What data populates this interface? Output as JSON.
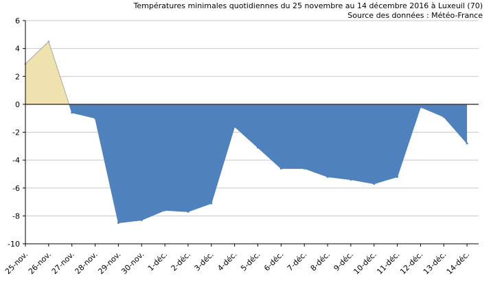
{
  "chart_data": {
    "type": "area",
    "title": "Températures minimales quotidiennes du 25 novembre au 14 décembre 2016 à Luxeuil (70)",
    "subtitle": "Source des données : Météo-France",
    "xlabel": "",
    "ylabel": "",
    "categories": [
      "25-nov.",
      "26-nov.",
      "27-nov.",
      "28-nov.",
      "29-nov.",
      "30-nov.",
      "1-déc.",
      "2-déc.",
      "3-déc.",
      "4-déc.",
      "5-déc.",
      "6-déc.",
      "7-déc.",
      "8-déc.",
      "9-déc.",
      "10-déc.",
      "11-déc.",
      "12-déc.",
      "13-déc.",
      "14-déc."
    ],
    "values": [
      2.9,
      4.5,
      -0.6,
      -1.0,
      -8.5,
      -8.3,
      -7.6,
      -7.7,
      -7.1,
      -1.6,
      -3.1,
      -4.6,
      -4.6,
      -5.2,
      -5.4,
      -5.7,
      -5.2,
      -0.2,
      -0.9,
      -2.8
    ],
    "ylim": [
      -10,
      6
    ],
    "yticks": [
      "6",
      "4",
      "2",
      "0",
      "-2",
      "-4",
      "-6",
      "-8",
      "-10"
    ],
    "grid": true,
    "colors": {
      "positive": "#efe2ae",
      "negative": "#4f81bd",
      "grid": "#c8c8c8",
      "axis": "#000000"
    }
  }
}
